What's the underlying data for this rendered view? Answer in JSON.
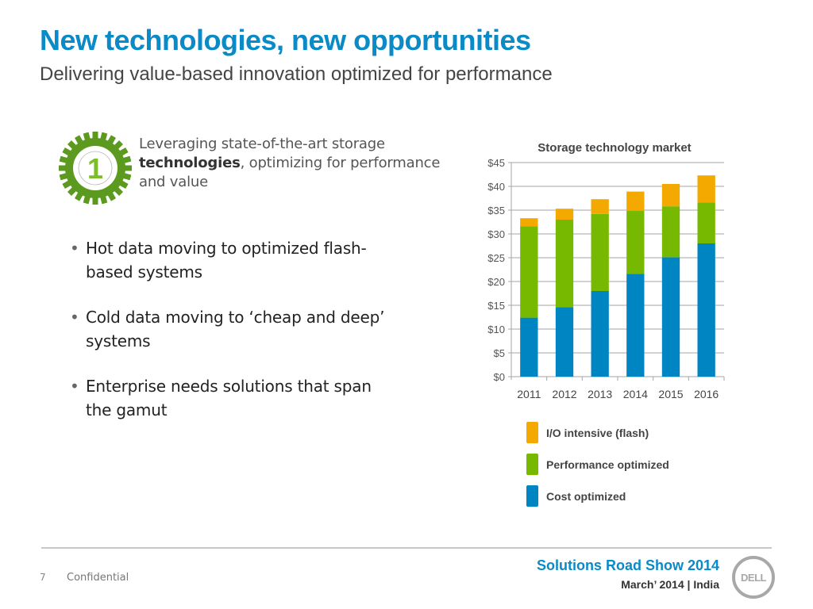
{
  "slide": {
    "title": "New technologies, new opportunities",
    "subtitle": "Delivering value-based innovation optimized for performance"
  },
  "callout": {
    "number": "1",
    "icon": "gear-icon",
    "text_before": "Leveraging state-of-the-art storage",
    "text_bold": "technologies",
    "text_after": ", optimizing for performance and value"
  },
  "bullets": [
    "Hot data moving to optimized flash-based systems",
    "Cold data moving to ‘cheap and deep’ systems",
    "Enterprise needs solutions that span the gamut"
  ],
  "footer": {
    "page_number": "7",
    "confidential": "Confidential",
    "event": "Solutions Road Show 2014",
    "event_date": "March’ 2014 | India",
    "logo": "DELL"
  },
  "colors": {
    "accent": "#0a8ac7",
    "io_intensive": "#f3a900",
    "performance": "#76b900",
    "cost": "#0085c3",
    "gear": "#5b9a1e"
  },
  "chart_data": {
    "type": "bar",
    "stacked": true,
    "title": "Storage technology market",
    "xlabel": "",
    "ylabel": "",
    "categories": [
      "2011",
      "2012",
      "2013",
      "2014",
      "2015",
      "2016"
    ],
    "series": [
      {
        "name": "Cost optimized",
        "color": "#0085c3",
        "values": [
          12.4,
          14.6,
          18.0,
          21.6,
          25.1,
          28.0
        ]
      },
      {
        "name": "Performance optimized",
        "color": "#76b900",
        "values": [
          19.2,
          18.4,
          16.2,
          13.3,
          10.7,
          8.6
        ]
      },
      {
        "name": "I/O intensive (flash)",
        "color": "#f3a900",
        "values": [
          1.7,
          2.3,
          3.1,
          4.0,
          4.7,
          5.7
        ]
      }
    ],
    "ylim": [
      0,
      45
    ],
    "yticks": [
      0,
      5,
      10,
      15,
      20,
      25,
      30,
      35,
      40,
      45
    ],
    "ytick_labels": [
      "$0",
      "$5",
      "$10",
      "$15",
      "$20",
      "$25",
      "$30",
      "$35",
      "$40",
      "$45"
    ],
    "grid": true,
    "legend": {
      "placement": "bottom",
      "order": [
        "I/O intensive (flash)",
        "Performance optimized",
        "Cost optimized"
      ]
    }
  }
}
